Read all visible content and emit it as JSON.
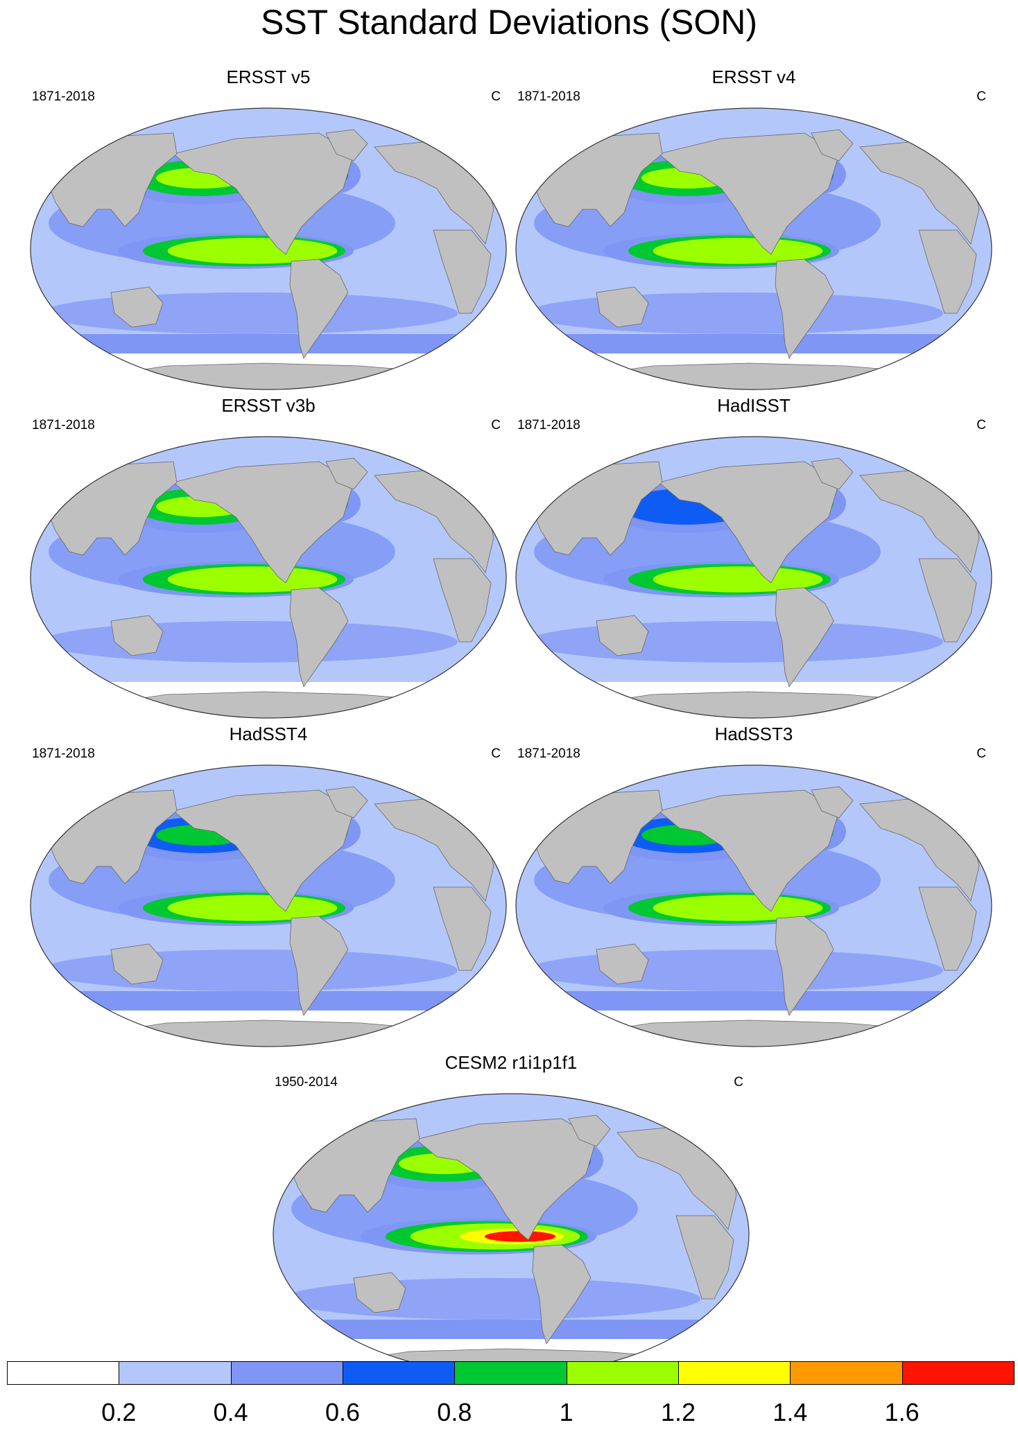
{
  "title": "SST Standard Deviations (SON)",
  "panels": [
    {
      "name": "ERSST v5",
      "period": "1871-2018",
      "unit": "C",
      "enso": 1.3,
      "npac": 1.1,
      "natl": 0.7,
      "so": 0.45
    },
    {
      "name": "ERSST v4",
      "period": "1871-2018",
      "unit": "C",
      "enso": 1.2,
      "npac": 1.2,
      "natl": 0.75,
      "so": 0.45
    },
    {
      "name": "ERSST v3b",
      "period": "1871-2018",
      "unit": "C",
      "enso": 1.2,
      "npac": 1.1,
      "natl": 0.8,
      "so": 0.35
    },
    {
      "name": "HadISST",
      "period": "1871-2018",
      "unit": "C",
      "enso": 1.1,
      "npac": 0.75,
      "natl": 0.8,
      "so": 0.3
    },
    {
      "name": "HadSST4",
      "period": "1871-2018",
      "unit": "C",
      "enso": 1.2,
      "npac": 0.9,
      "natl": 0.8,
      "so": 0.6
    },
    {
      "name": "HadSST3",
      "period": "1871-2018",
      "unit": "C",
      "enso": 1.2,
      "npac": 0.9,
      "natl": 0.8,
      "so": 0.6
    },
    {
      "name": "CESM2 r1i1p1f1",
      "period": "1950-2014",
      "unit": "C",
      "enso": 1.65,
      "npac": 1.1,
      "natl": 0.75,
      "so": 0.5
    }
  ],
  "colorbar": {
    "levels": [
      "0.2",
      "0.4",
      "0.6",
      "0.8",
      "1",
      "1.2",
      "1.4",
      "1.6"
    ],
    "colors": [
      "#ffffff",
      "#b4c7fa",
      "#7f96f5",
      "#0f5cf5",
      "#00c832",
      "#9bff00",
      "#ffff00",
      "#ff9900",
      "#ff1400"
    ]
  },
  "colors": {
    "land": "#c0c0c0",
    "ocean_base": "#b4c7fa",
    "sea_ice": "#ffffff"
  }
}
